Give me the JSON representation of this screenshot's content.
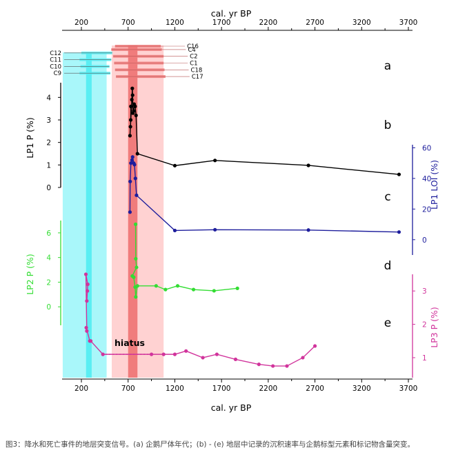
{
  "figure": {
    "top_axis_label": "cal. yr BP",
    "bottom_axis_label": "cal. yr BP",
    "caption": "图3：降水和死亡事件的地层突变信号。(a) 企鹅尸体年代；(b) - (e) 地层中记录的沉积速率与企鹅标型元素和标记物含量突变。"
  },
  "colors": {
    "cyan_band": "#a9f7fa",
    "cyan_core": "#5aeef3",
    "pink_band": "#ffd2d2",
    "pink_core": "#f07c7c",
    "series_b": "#000000",
    "series_c": "#1d1d9c",
    "series_d": "#33dd33",
    "series_e": "#d1349c"
  },
  "chart_data": {
    "type": "line",
    "x_axis": {
      "label": "cal. yr BP",
      "ticks": [
        200,
        700,
        1200,
        1700,
        2200,
        2700,
        3200,
        3700
      ],
      "range": [
        0,
        3800
      ]
    },
    "bands": [
      {
        "color": "cyan",
        "x": [
          0,
          470
        ]
      },
      {
        "color": "cyan-core",
        "x": [
          250,
          310
        ]
      },
      {
        "color": "pink",
        "x": [
          525,
          1080
        ]
      },
      {
        "color": "pink-core",
        "x": [
          700,
          800
        ]
      }
    ],
    "panel_a": {
      "panel_label": "a",
      "samples": [
        {
          "label": "C16",
          "x": [
            560,
            1050
          ],
          "right_label": true
        },
        {
          "label": "C4",
          "x": [
            520,
            1060
          ],
          "right_label": true
        },
        {
          "label": "C12",
          "x": [
            200,
            530
          ],
          "left_label": true
        },
        {
          "label": "C2",
          "x": [
            540,
            1080
          ],
          "right_label": true
        },
        {
          "label": "C11",
          "x": [
            180,
            520
          ],
          "left_label": true
        },
        {
          "label": "C1",
          "x": [
            550,
            1080
          ],
          "right_label": true
        },
        {
          "label": "C10",
          "x": [
            190,
            500
          ],
          "left_label": true
        },
        {
          "label": "C18",
          "x": [
            560,
            1090
          ],
          "right_label": true
        },
        {
          "label": "C9",
          "x": [
            180,
            510
          ],
          "left_label": true
        },
        {
          "label": "C17",
          "x": [
            570,
            1100
          ],
          "right_label": true
        }
      ]
    },
    "series": [
      {
        "name": "LP1 P",
        "panel_label": "b",
        "axis_label": "LP1 P (%)",
        "axis_side": "left",
        "ticks": [
          0,
          1,
          2,
          3,
          4
        ],
        "ylim": [
          0,
          4.5
        ],
        "points": [
          [
            730,
            3.6
          ],
          [
            728,
            3.0
          ],
          [
            725,
            2.7
          ],
          [
            720,
            2.3
          ],
          [
            740,
            3.9
          ],
          [
            745,
            4.4
          ],
          [
            748,
            4.1
          ],
          [
            752,
            3.3
          ],
          [
            760,
            3.4
          ],
          [
            765,
            3.7
          ],
          [
            775,
            3.6
          ],
          [
            785,
            3.2
          ],
          [
            800,
            1.5
          ],
          [
            1200,
            0.97
          ],
          [
            1630,
            1.2
          ],
          [
            2630,
            0.98
          ],
          [
            3600,
            0.58
          ]
        ]
      },
      {
        "name": "LP1 LOI",
        "panel_label": "c",
        "axis_label": "LP1 LOI (%)",
        "axis_side": "right",
        "ticks": [
          0,
          20,
          40,
          60
        ],
        "ylim": [
          -10,
          62
        ],
        "points": [
          [
            720,
            18
          ],
          [
            722,
            38
          ],
          [
            730,
            50
          ],
          [
            742,
            52
          ],
          [
            748,
            54
          ],
          [
            760,
            50
          ],
          [
            768,
            49
          ],
          [
            778,
            40
          ],
          [
            790,
            29
          ],
          [
            1200,
            6
          ],
          [
            1630,
            6.5
          ],
          [
            2630,
            6.3
          ],
          [
            3600,
            5
          ]
        ]
      },
      {
        "name": "LP2 P",
        "panel_label": "d",
        "axis_label": "LP2 P (%)",
        "axis_side": "left",
        "ticks": [
          0,
          2,
          4,
          6
        ],
        "ylim": [
          -1.5,
          7
        ],
        "points": [
          [
            780,
            6.7
          ],
          [
            782,
            3.9
          ],
          [
            790,
            3.2
          ],
          [
            745,
            2.5
          ],
          [
            760,
            2.4
          ],
          [
            775,
            1.6
          ],
          [
            782,
            0.8
          ],
          [
            800,
            1.7
          ],
          [
            1000,
            1.7
          ],
          [
            1100,
            1.4
          ],
          [
            1230,
            1.7
          ],
          [
            1400,
            1.4
          ],
          [
            1620,
            1.3
          ],
          [
            1870,
            1.5
          ]
        ]
      },
      {
        "name": "LP3 P",
        "panel_label": "e",
        "axis_label": "LP3 P (%)",
        "axis_side": "right",
        "ticks": [
          1,
          2,
          3
        ],
        "ylim": [
          0.4,
          3.5
        ],
        "annotation": "hiatus",
        "points": [
          [
            258,
            2.7
          ],
          [
            264,
            3.0
          ],
          [
            268,
            3.2
          ],
          [
            248,
            3.5
          ],
          [
            258,
            1.8
          ],
          [
            252,
            1.9
          ],
          [
            290,
            1.5
          ],
          [
            300,
            1.5
          ],
          [
            430,
            1.1
          ],
          [
            950,
            1.1
          ],
          [
            1080,
            1.1
          ],
          [
            1200,
            1.1
          ],
          [
            1320,
            1.2
          ],
          [
            1500,
            1.0
          ],
          [
            1650,
            1.1
          ],
          [
            1850,
            0.95
          ],
          [
            2100,
            0.8
          ],
          [
            2250,
            0.75
          ],
          [
            2400,
            0.75
          ],
          [
            2570,
            1.0
          ],
          [
            2700,
            1.35
          ]
        ]
      }
    ]
  }
}
